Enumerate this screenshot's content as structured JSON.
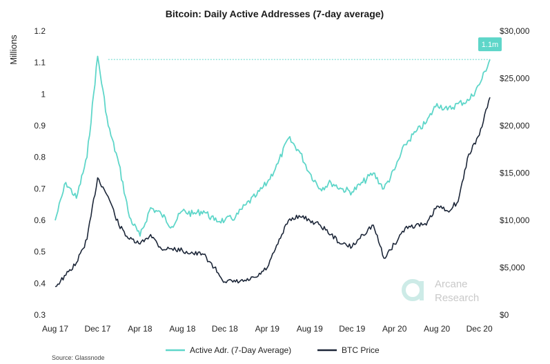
{
  "chart_data": {
    "type": "line",
    "title": "Bitcoin: Daily Active Addresses (7-day average)",
    "ylabel": "Millions",
    "ylim": [
      0.3,
      1.2
    ],
    "y2lim": [
      0,
      30000
    ],
    "yticks": [
      "1.2",
      "1.1",
      "1",
      "0.9",
      "0.8",
      "0.7",
      "0.6",
      "0.5",
      "0.4",
      "0.3"
    ],
    "y2ticks": [
      "$30,000",
      "$25,000",
      "$20,000",
      "$15,000",
      "$10,000",
      "$5,000",
      "$0"
    ],
    "xticks": [
      "Aug 17",
      "Dec 17",
      "Apr 18",
      "Aug 18",
      "Dec 18",
      "Apr 19",
      "Aug 19",
      "Dec 19",
      "Apr 20",
      "Aug 20",
      "Dec 20"
    ],
    "x": [
      "Aug 17",
      "Sep 17",
      "Oct 17",
      "Nov 17",
      "Dec 17",
      "Jan 18",
      "Feb 18",
      "Mar 18",
      "Apr 18",
      "May 18",
      "Jun 18",
      "Jul 18",
      "Aug 18",
      "Sep 18",
      "Oct 18",
      "Nov 18",
      "Dec 18",
      "Jan 19",
      "Feb 19",
      "Mar 19",
      "Apr 19",
      "May 19",
      "Jun 19",
      "Jul 19",
      "Aug 19",
      "Sep 19",
      "Oct 19",
      "Nov 19",
      "Dec 19",
      "Jan 20",
      "Feb 20",
      "Mar 20",
      "Apr 20",
      "May 20",
      "Jun 20",
      "Jul 20",
      "Aug 20",
      "Sep 20",
      "Oct 20",
      "Nov 20",
      "Dec 20",
      "Jan 21"
    ],
    "series": [
      {
        "name": "Active Adr. (7-Day Average)",
        "axis": "left",
        "color": "#5ed6c9",
        "values": [
          0.6,
          0.72,
          0.67,
          0.8,
          1.12,
          0.9,
          0.78,
          0.61,
          0.55,
          0.64,
          0.62,
          0.58,
          0.63,
          0.62,
          0.63,
          0.6,
          0.6,
          0.61,
          0.65,
          0.68,
          0.72,
          0.78,
          0.86,
          0.82,
          0.75,
          0.7,
          0.72,
          0.7,
          0.69,
          0.72,
          0.75,
          0.7,
          0.76,
          0.84,
          0.88,
          0.91,
          0.97,
          0.95,
          0.97,
          0.98,
          1.03,
          1.11
        ]
      },
      {
        "name": "BTC Price",
        "axis": "right",
        "color": "#1c2638",
        "values": [
          3000,
          4200,
          5500,
          8000,
          14500,
          12500,
          9500,
          8000,
          7500,
          8500,
          7000,
          7000,
          6800,
          6500,
          6400,
          5000,
          3500,
          3500,
          3600,
          4000,
          5000,
          7500,
          10000,
          10500,
          10000,
          9500,
          8500,
          7500,
          7200,
          8500,
          9500,
          6000,
          7500,
          9200,
          9500,
          9500,
          11500,
          11000,
          12000,
          17000,
          19000,
          23000
        ]
      }
    ],
    "reference_line": {
      "value": 1.11,
      "axis": "left",
      "style": "dotted"
    },
    "annotation": "1.1m",
    "legend_position": "bottom",
    "grid": false
  },
  "source_text": "Source: Glassnode",
  "watermark": {
    "line1": "Arcane",
    "line2": "Research"
  }
}
